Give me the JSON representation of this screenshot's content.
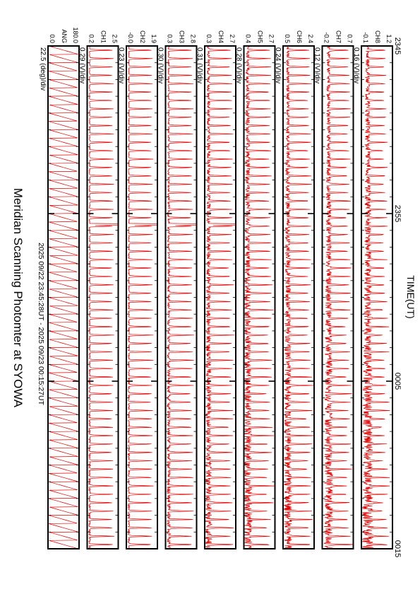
{
  "title": "Meridian Scanning Photomter at SYOWA",
  "time_range": "2025 09/22 23:45:28UT - 2025 09/23 00:15:27UT",
  "xlabel": "TIME(UT)",
  "colors": {
    "trace": "#e00000",
    "frame": "#000000"
  },
  "chart_data": {
    "type": "line",
    "x_ticks": [
      "2345",
      "2355",
      "0005",
      "0015"
    ],
    "x_range": [
      "2345",
      "0015"
    ],
    "panels": [
      {
        "name": "ANG",
        "scale": "22.5 (deg)/div",
        "ylim": [
          "0.0",
          "180.0"
        ],
        "waveform": "sawtooth",
        "cycles": 60,
        "spikes": [],
        "base": 0.02,
        "peak": 0.98,
        "noise": 0.0
      },
      {
        "name": "CH1",
        "scale": "0.29 (V)/div",
        "ylim": [
          "0.2",
          "2.5"
        ],
        "waveform": "pulse",
        "cycles": 60,
        "spikes": [
          0.355
        ],
        "base": 0.08,
        "peak": 0.85,
        "noise": 0.04
      },
      {
        "name": "CH2",
        "scale": "0.23 (V)/div",
        "ylim": [
          "-0.0",
          "1.9"
        ],
        "waveform": "pulse",
        "cycles": 60,
        "spikes": [
          0.355
        ],
        "base": 0.08,
        "peak": 0.85,
        "noise": 0.04
      },
      {
        "name": "CH3",
        "scale": "0.30 (V)/div",
        "ylim": [
          "0.3",
          "2.8"
        ],
        "waveform": "pulse",
        "cycles": 60,
        "spikes": [
          0.355
        ],
        "base": 0.1,
        "peak": 0.88,
        "noise": 0.08
      },
      {
        "name": "CH4",
        "scale": "0.31 (V)/div",
        "ylim": [
          "0.3",
          "2.7"
        ],
        "waveform": "pulse",
        "cycles": 60,
        "spikes": [
          0.355
        ],
        "base": 0.12,
        "peak": 0.88,
        "noise": 0.15
      },
      {
        "name": "CH5",
        "scale": "0.28 (V)/div",
        "ylim": [
          "0.4",
          "2.7"
        ],
        "waveform": "pulse",
        "cycles": 60,
        "spikes": [],
        "base": 0.12,
        "peak": 0.88,
        "noise": 0.2
      },
      {
        "name": "CH6",
        "scale": "0.24 (V)/div",
        "ylim": [
          "0.5",
          "2.4"
        ],
        "waveform": "pulse",
        "cycles": 60,
        "spikes": [],
        "base": 0.15,
        "peak": 0.88,
        "noise": 0.18
      },
      {
        "name": "CH7",
        "scale": "0.12 (V)/div",
        "ylim": [
          "-0.2",
          "0.7"
        ],
        "waveform": "pulse",
        "cycles": 60,
        "spikes": [],
        "base": 0.2,
        "peak": 0.88,
        "noise": 0.2
      },
      {
        "name": "CH8",
        "scale": "0.16 (V)/div",
        "ylim": [
          "-0.1",
          "1.2"
        ],
        "waveform": "pulse",
        "cycles": 60,
        "spikes": [],
        "base": 0.2,
        "peak": 0.8,
        "noise": 0.25
      }
    ]
  }
}
